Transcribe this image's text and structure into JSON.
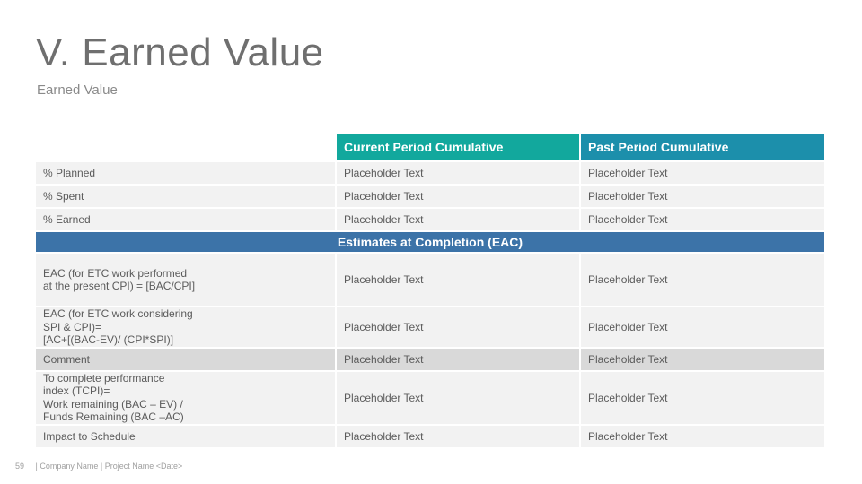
{
  "slide": {
    "title": "V. Earned Value",
    "subtitle": "Earned Value"
  },
  "table": {
    "headers": {
      "current": "Current Period Cumulative",
      "past": "Past Period Cumulative"
    },
    "section_eac": "Estimates at Completion (EAC)",
    "rows": [
      {
        "label": "% Planned",
        "current": "Placeholder Text",
        "past": "Placeholder Text"
      },
      {
        "label": "% Spent",
        "current": "Placeholder Text",
        "past": "Placeholder Text"
      },
      {
        "label": "% Earned",
        "current": "Placeholder Text",
        "past": "Placeholder Text"
      },
      {
        "label": "EAC (for ETC work performed\nat the present CPI) = [BAC/CPI]",
        "current": "Placeholder Text",
        "past": "Placeholder Text"
      },
      {
        "label": "EAC (for ETC work considering\nSPI & CPI)=\n[AC+[(BAC-EV)/ (CPI*SPI)]",
        "current": "Placeholder Text",
        "past": "Placeholder Text"
      },
      {
        "label": "Comment",
        "current": "Placeholder Text",
        "past": "Placeholder Text"
      },
      {
        "label": "To complete performance\nindex (TCPI)=\nWork remaining (BAC – EV) /\nFunds Remaining (BAC –AC)",
        "current": "Placeholder Text",
        "past": "Placeholder Text"
      },
      {
        "label": "Impact to Schedule",
        "current": "Placeholder Text",
        "past": "Placeholder Text"
      }
    ]
  },
  "footer": {
    "page_number": "59",
    "text": "| Company Name | Project Name <Date>"
  },
  "colors": {
    "header_current": "#12a89d",
    "header_past": "#1c8fab",
    "section_band": "#3c73a8",
    "row_bg": "#f2f2f2",
    "comment_bg": "#d9d9d9"
  }
}
